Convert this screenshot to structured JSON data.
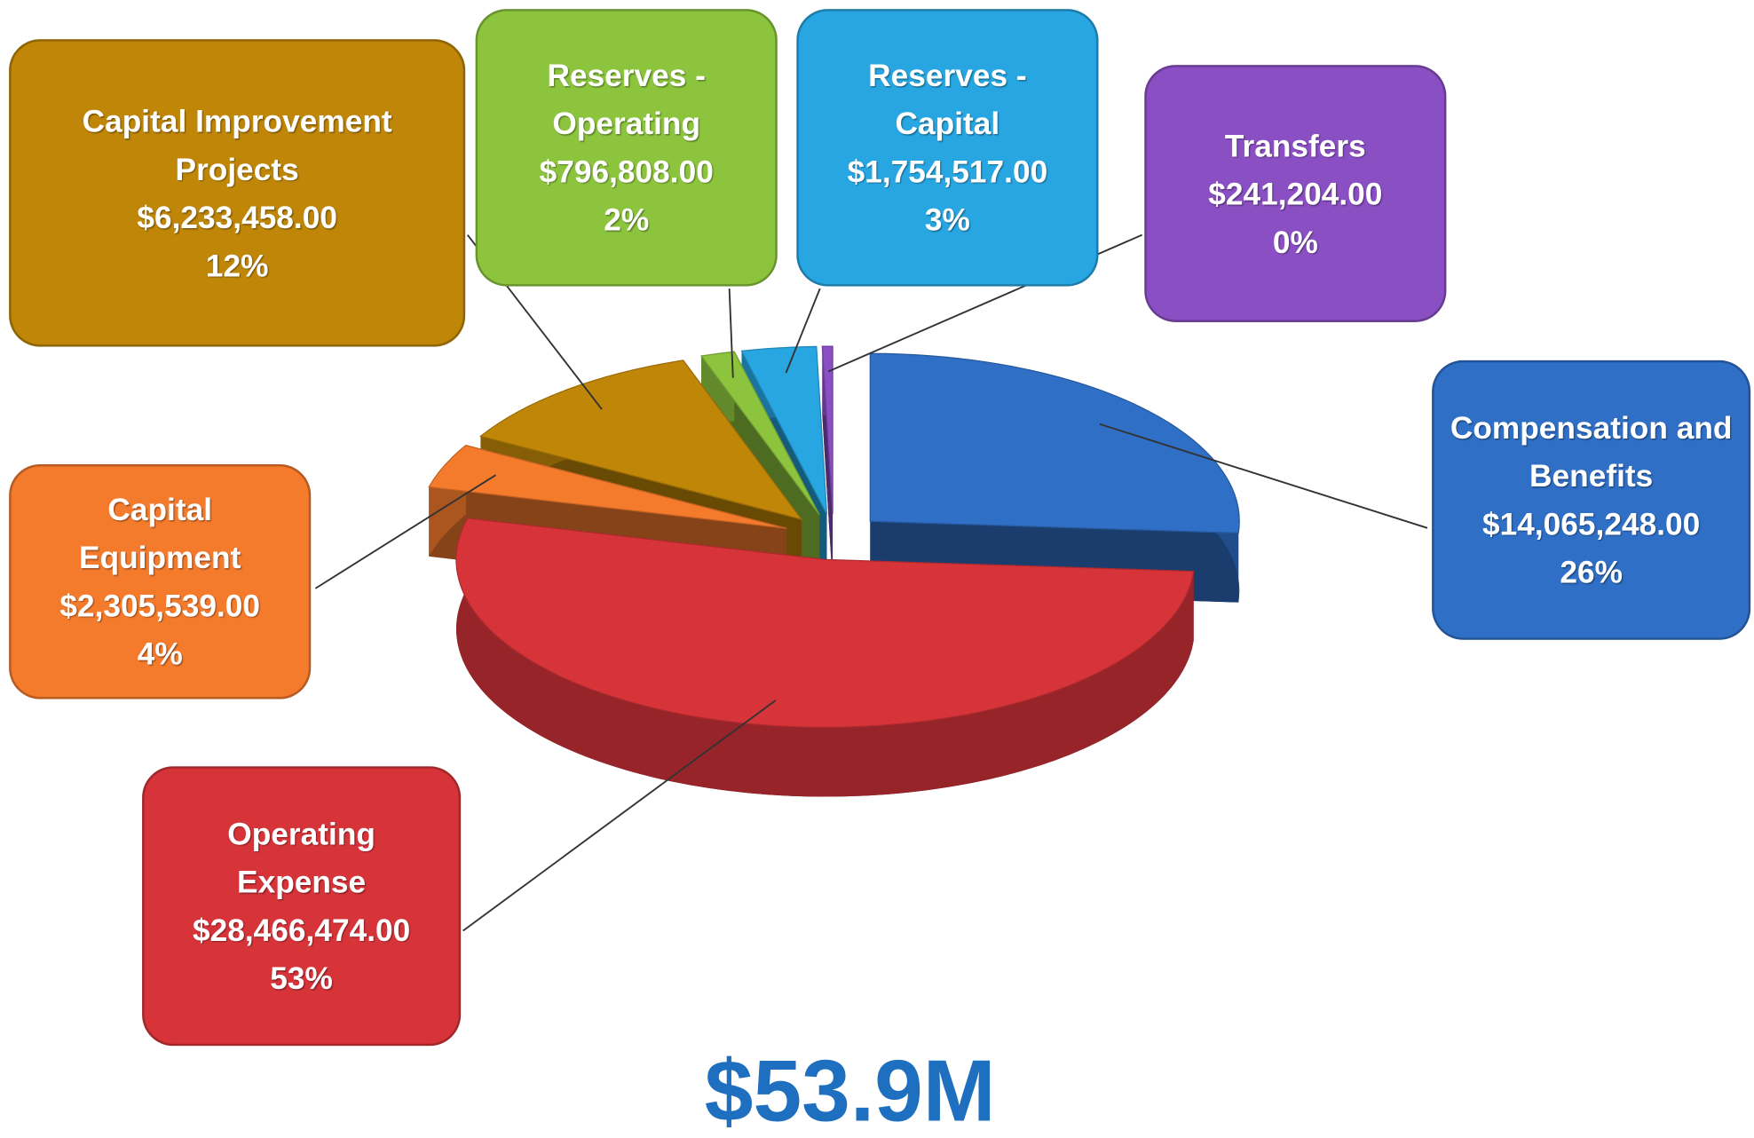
{
  "chart_data": {
    "type": "pie",
    "title": "$53.9M",
    "categories": [
      "Compensation and Benefits",
      "Operating Expense",
      "Capital Equipment",
      "Capital Improvement Projects",
      "Reserves - Operating",
      "Reserves - Capital",
      "Transfers"
    ],
    "values": [
      14065248,
      28466474,
      2305539,
      6233458,
      796808,
      1754517,
      241204
    ],
    "value_labels": [
      "$14,065,248.00",
      "$28,466,474.00",
      "$2,305,539.00",
      "$6,233,458.00",
      "$796,808.00",
      "$1,754,517.00",
      "$241,204.00"
    ],
    "percents": [
      26,
      53,
      4,
      12,
      2,
      3,
      0
    ],
    "percent_labels": [
      "26%",
      "53%",
      "4%",
      "12%",
      "2%",
      "3%",
      "0%"
    ],
    "colors": [
      "#2f6fc6",
      "#d7343a",
      "#f47a2c",
      "#bf8608",
      "#8cc43e",
      "#27a6e2",
      "#8a4fc3"
    ]
  }
}
